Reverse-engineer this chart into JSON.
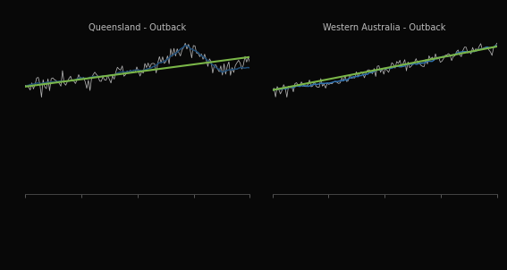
{
  "title_left": "Queensland - Outback",
  "title_right": "Western Australia - Outback",
  "background_color": "#080808",
  "text_color": "#bbbbbb",
  "line_color_trend": "#7ab648",
  "line_color_actual_qld": "#1f4e79",
  "line_color_actual_wa": "#2e6fad",
  "line_color_raw": "#c8c8c8",
  "legend_green": "#7ab648",
  "legend_grey": "#909090",
  "legend_blue": "#2e6fad",
  "n_points": 140,
  "seed": 99
}
